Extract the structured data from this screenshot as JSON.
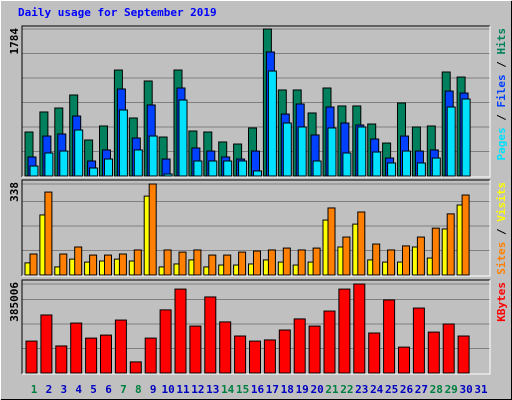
{
  "chart_data": {
    "type": "bar",
    "title": "Daily usage for September 2019",
    "legend_separator": "/",
    "categories": [
      "1",
      "2",
      "3",
      "4",
      "5",
      "6",
      "7",
      "8",
      "9",
      "10",
      "11",
      "12",
      "13",
      "14",
      "15",
      "16",
      "17",
      "18",
      "19",
      "20",
      "21",
      "22",
      "23",
      "24",
      "25",
      "26",
      "27",
      "28",
      "29",
      "30",
      "31"
    ],
    "category_colors": [
      "#008040",
      "#0000c0",
      "#0000c0",
      "#0000c0",
      "#0000c0",
      "#0000c0",
      "#008040",
      "#008040",
      "#0000c0",
      "#0000c0",
      "#0000c0",
      "#0000c0",
      "#0000c0",
      "#008040",
      "#008040",
      "#0000c0",
      "#0000c0",
      "#0000c0",
      "#0000c0",
      "#0000c0",
      "#008040",
      "#008040",
      "#0000c0",
      "#0000c0",
      "#0000c0",
      "#0000c0",
      "#0000c0",
      "#008040",
      "#008040",
      "#0000c0",
      "#0000c0"
    ],
    "grid": true,
    "panels": [
      {
        "ylim": [
          0,
          1784
        ],
        "yticks": [
          1784
        ],
        "series": [
          {
            "name": "Hits",
            "color": "#00805c",
            "values": [
              534,
              777,
              825,
              983,
              437,
              607,
              1286,
              704,
              1153,
              473,
              1286,
              546,
              534,
              413,
              388,
              583,
              1784,
              1044,
              1044,
              765,
              1068,
              850,
              850,
              631,
              400,
              886,
              595,
              607,
              1262,
              1201,
              null
            ]
          },
          {
            "name": "Files",
            "color": "#0040ff",
            "values": [
              231,
              485,
              510,
              728,
              182,
              316,
              1056,
              461,
              862,
              206,
              1068,
              340,
              303,
              231,
              206,
              303,
              1505,
              752,
              874,
              498,
              837,
              643,
              619,
              449,
              218,
              485,
              303,
              316,
              1031,
              1007,
              null
            ]
          },
          {
            "name": "Pages",
            "color": "#00e0ff",
            "values": [
              121,
              279,
              303,
              558,
              97,
              206,
              801,
              316,
              485,
              24,
              922,
              182,
              182,
              182,
              182,
              61,
              1274,
              643,
              595,
              182,
              583,
              279,
              595,
              291,
              158,
              303,
              158,
              218,
              837,
              934,
              null
            ]
          }
        ]
      },
      {
        "ylim": [
          0,
          338
        ],
        "yticks": [
          338
        ],
        "series": [
          {
            "name": "Visits",
            "color": "#ffff00",
            "values": [
              45,
              223,
              30,
              59,
              48,
              52,
              59,
              52,
              293,
              30,
              41,
              56,
              30,
              37,
              37,
              41,
              56,
              48,
              37,
              48,
              204,
              104,
              189,
              56,
              48,
              48,
              104,
              63,
              171,
              260,
              null
            ]
          },
          {
            "name": "Sites",
            "color": "#ff8000",
            "values": [
              78,
              308,
              78,
              104,
              74,
              74,
              78,
              93,
              338,
              93,
              85,
              93,
              74,
              74,
              85,
              89,
              93,
              100,
              93,
              100,
              249,
              141,
              234,
              115,
              93,
              108,
              141,
              174,
              227,
              297,
              null
            ]
          }
        ]
      },
      {
        "ylim": [
          0,
          385006
        ],
        "yticks": [
          385006
        ],
        "series": [
          {
            "name": "KBytes",
            "color": "#ff0000",
            "values": [
              138000,
              251000,
              117000,
              216000,
              151000,
              164000,
              229000,
              48000,
              151000,
              273000,
              363000,
              203000,
              329000,
              221000,
              160000,
              138000,
              143000,
              186000,
              234000,
              203000,
              268000,
              363000,
              385006,
              173000,
              316000,
              112000,
              281000,
              177000,
              212000,
              160000,
              null
            ]
          }
        ]
      }
    ]
  }
}
